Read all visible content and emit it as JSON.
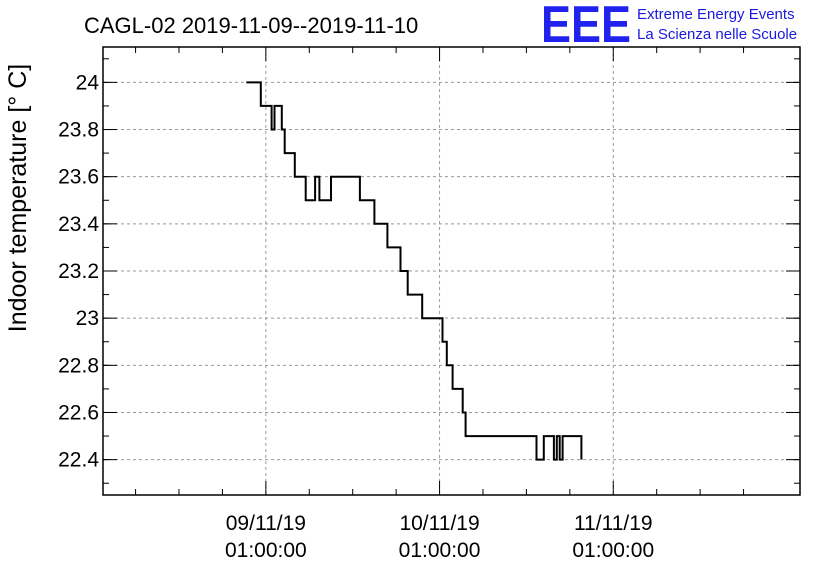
{
  "chart_data": {
    "type": "line",
    "title": "CAGL-02 2019-11-09--2019-11-10",
    "ylabel": "Indoor temperature [° C]",
    "xlabel": "",
    "ylim": [
      22.25,
      24.15
    ],
    "xlim_hours": [
      -22.5,
      73.8
    ],
    "x_ticks": [
      {
        "hours": 0,
        "line1": "09/11/19",
        "line2": "01:00:00"
      },
      {
        "hours": 24,
        "line1": "10/11/19",
        "line2": "01:00:00"
      },
      {
        "hours": 48,
        "line1": "11/11/19",
        "line2": "01:00:00"
      }
    ],
    "y_ticks": [
      "22.4",
      "22.6",
      "22.8",
      "23",
      "23.2",
      "23.4",
      "23.6",
      "23.8",
      "24"
    ],
    "grid": true,
    "series": [
      {
        "step_points": [
          [
            -2.7,
            24.0
          ],
          [
            -0.7,
            24.0
          ],
          [
            -0.7,
            23.9
          ],
          [
            0.8,
            23.9
          ],
          [
            0.8,
            23.8
          ],
          [
            1.2,
            23.8
          ],
          [
            1.2,
            23.9
          ],
          [
            2.2,
            23.9
          ],
          [
            2.2,
            23.8
          ],
          [
            2.6,
            23.8
          ],
          [
            2.6,
            23.7
          ],
          [
            4.0,
            23.7
          ],
          [
            4.0,
            23.6
          ],
          [
            5.5,
            23.6
          ],
          [
            5.5,
            23.5
          ],
          [
            6.8,
            23.5
          ],
          [
            6.8,
            23.6
          ],
          [
            7.4,
            23.6
          ],
          [
            7.4,
            23.5
          ],
          [
            9.0,
            23.5
          ],
          [
            9.0,
            23.6
          ],
          [
            13.0,
            23.6
          ],
          [
            13.0,
            23.5
          ],
          [
            15.0,
            23.5
          ],
          [
            15.0,
            23.4
          ],
          [
            16.8,
            23.4
          ],
          [
            16.8,
            23.3
          ],
          [
            18.6,
            23.3
          ],
          [
            18.6,
            23.2
          ],
          [
            19.6,
            23.2
          ],
          [
            19.6,
            23.1
          ],
          [
            21.6,
            23.1
          ],
          [
            21.6,
            23.0
          ],
          [
            24.4,
            23.0
          ],
          [
            24.4,
            22.9
          ],
          [
            25.0,
            22.9
          ],
          [
            25.0,
            22.8
          ],
          [
            25.8,
            22.8
          ],
          [
            25.8,
            22.7
          ],
          [
            27.2,
            22.7
          ],
          [
            27.2,
            22.6
          ],
          [
            27.6,
            22.6
          ],
          [
            27.6,
            22.5
          ],
          [
            37.4,
            22.5
          ],
          [
            37.4,
            22.4
          ],
          [
            38.4,
            22.4
          ],
          [
            38.4,
            22.5
          ],
          [
            39.8,
            22.5
          ],
          [
            39.8,
            22.4
          ],
          [
            40.2,
            22.4
          ],
          [
            40.2,
            22.5
          ],
          [
            40.6,
            22.5
          ],
          [
            40.6,
            22.4
          ],
          [
            41.0,
            22.4
          ],
          [
            41.0,
            22.5
          ],
          [
            43.6,
            22.5
          ],
          [
            43.6,
            22.4
          ]
        ]
      }
    ]
  },
  "logo": {
    "letters": "EEE",
    "line1": "Extreme Energy Events",
    "line2": "La Scienza nelle Scuole"
  },
  "colors": {
    "line": "#000000",
    "grid": "#9a9a9a",
    "logo": "#2222ee"
  }
}
